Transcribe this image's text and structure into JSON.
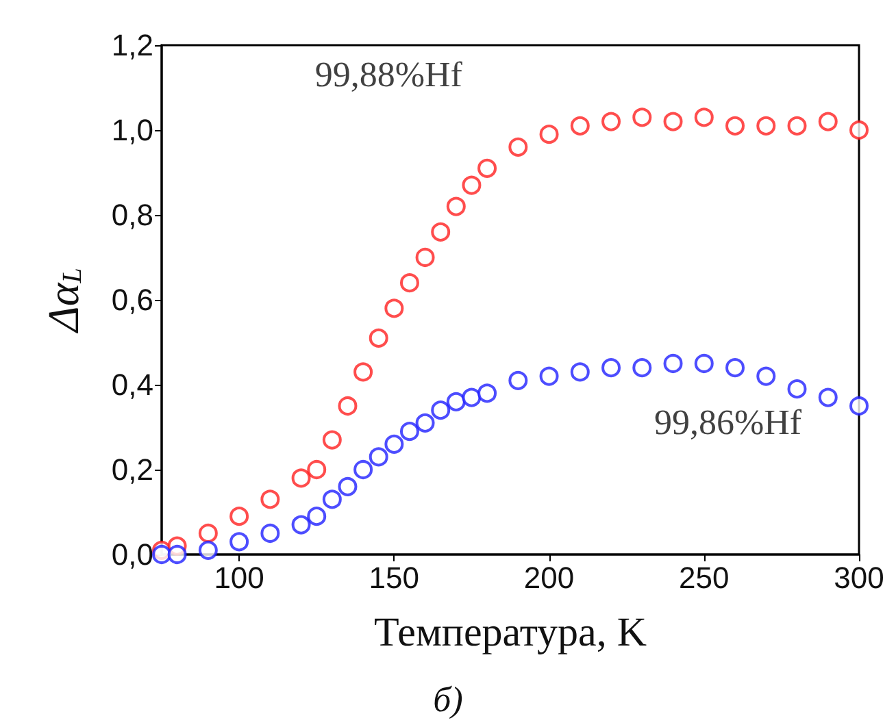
{
  "chart_data": {
    "type": "scatter",
    "xlabel": "Температура, K",
    "ylabel": "Δα$_{L}$",
    "marker": "circle",
    "grid": false,
    "xlim": [
      75,
      300
    ],
    "xticks": [
      100,
      150,
      200,
      250,
      300
    ],
    "ylim": [
      0,
      1.2
    ],
    "yticks": [
      {
        "value": 0,
        "label": "0,0"
      },
      {
        "value": 0.2,
        "label": "0,2"
      },
      {
        "value": 0.4,
        "label": "0,4"
      },
      {
        "value": 0.6,
        "label": "0,6"
      },
      {
        "value": 0.8,
        "label": "0,8"
      },
      {
        "value": 1.0,
        "label": "1,0"
      },
      {
        "value": 1.2,
        "label": "1,2"
      }
    ],
    "x": [
      75,
      80,
      90,
      100,
      110,
      120,
      125,
      130,
      135,
      140,
      145,
      150,
      155,
      160,
      165,
      170,
      175,
      180,
      190,
      200,
      210,
      220,
      230,
      240,
      250,
      260,
      270,
      280,
      290,
      300
    ],
    "series": [
      {
        "name": "99,88%Hf",
        "color": "#ff2020",
        "values": [
          0.01,
          0.02,
          0.05,
          0.09,
          0.13,
          0.18,
          0.2,
          0.27,
          0.35,
          0.43,
          0.51,
          0.58,
          0.64,
          0.7,
          0.76,
          0.82,
          0.87,
          0.91,
          0.96,
          0.99,
          1.01,
          1.02,
          1.03,
          1.02,
          1.03,
          1.01,
          1.01,
          1.01,
          1.02,
          1.0
        ]
      },
      {
        "name": "99,86%Hf",
        "color": "#2020ff",
        "values": [
          0.0,
          0.0,
          0.01,
          0.03,
          0.05,
          0.07,
          0.09,
          0.13,
          0.16,
          0.2,
          0.23,
          0.26,
          0.29,
          0.31,
          0.34,
          0.36,
          0.37,
          0.38,
          0.41,
          0.42,
          0.43,
          0.44,
          0.44,
          0.45,
          0.45,
          0.44,
          0.42,
          0.39,
          0.37,
          0.35
        ]
      }
    ],
    "annotations": [
      "б)"
    ]
  }
}
